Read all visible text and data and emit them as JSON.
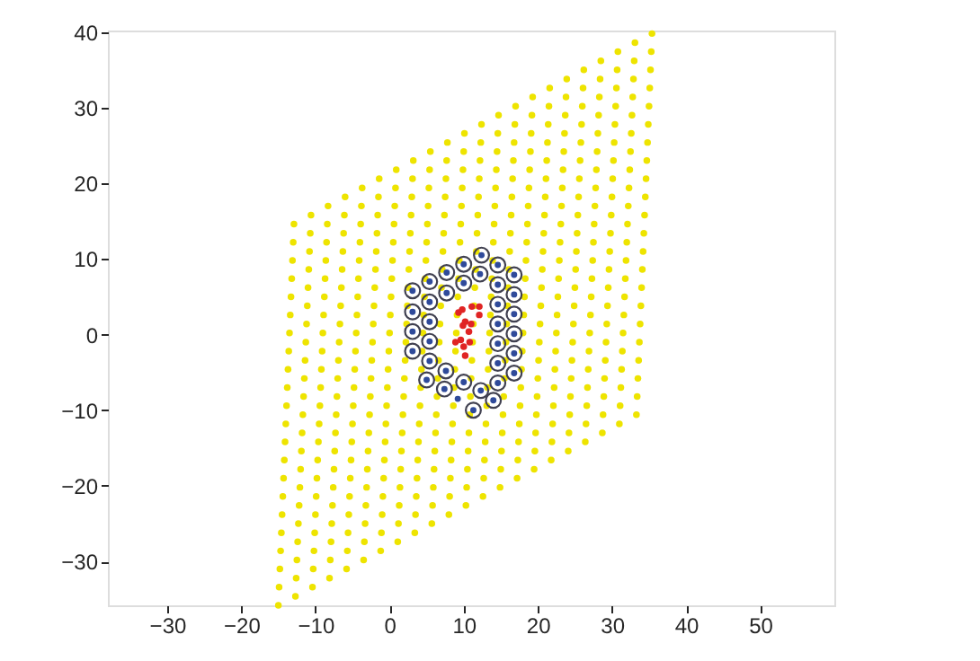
{
  "chart_data": {
    "type": "scatter",
    "xlim": [
      -38,
      60
    ],
    "ylim": [
      -35.8,
      40.2
    ],
    "xticks": [
      -30,
      -20,
      -10,
      0,
      10,
      20,
      30,
      40,
      50
    ],
    "yticks": [
      -30,
      -20,
      -10,
      0,
      10,
      20,
      30,
      40
    ],
    "grid": false,
    "marker": "circle",
    "series": [
      {
        "color": "#eee400",
        "x": [
          -15,
          -12.7,
          -10.4,
          -8.1,
          -5.8,
          -3.5,
          -1.2,
          1.1,
          3.4,
          5.7,
          8,
          10.3,
          12.6,
          14.9,
          17.2,
          19.5,
          21.8,
          24.1,
          26.4,
          28.7,
          31,
          33.3,
          -14.9,
          -12.6,
          -10.3,
          -8,
          -5.7,
          -3.4,
          -1.1,
          1.2,
          3.5,
          5.8,
          8.1,
          10.4,
          12.7,
          15,
          17.3,
          19.6,
          21.9,
          24.2,
          26.5,
          28.8,
          31.1,
          33.4,
          -14.8,
          -12.5,
          -10.2,
          -7.9,
          -5.6,
          -3.3,
          -1,
          1.3,
          3.6,
          5.9,
          8.2,
          10.5,
          12.8,
          15.1,
          17.4,
          19.7,
          22,
          24.3,
          26.6,
          28.9,
          31.2,
          33.5,
          -14.7,
          -12.4,
          -10.1,
          -7.8,
          -5.5,
          -3.2,
          -0.9,
          1.4,
          3.7,
          6,
          8.3,
          10.6,
          12.9,
          15.2,
          17.5,
          19.8,
          22.1,
          24.4,
          26.7,
          29,
          31.3,
          33.6,
          -14.6,
          -12.3,
          -10,
          -7.7,
          -5.4,
          -3.1,
          -0.8,
          1.5,
          3.8,
          6.1,
          8.4,
          10.7,
          13,
          15.3,
          17.6,
          19.9,
          22.2,
          24.5,
          26.8,
          29.1,
          31.4,
          33.7,
          -14.5,
          -12.2,
          -9.9,
          -7.6,
          -5.3,
          -3,
          -0.7,
          1.6,
          3.9,
          6.2,
          8.5,
          10.8,
          13.1,
          15.4,
          17.7,
          20,
          22.3,
          24.6,
          26.9,
          29.2,
          31.5,
          33.8,
          -14.4,
          -12.1,
          -9.8,
          -7.5,
          -5.2,
          -2.9,
          -0.6,
          1.7,
          4,
          6.3,
          8.6,
          10.9,
          13.2,
          15.5,
          17.8,
          20.1,
          22.4,
          24.7,
          27,
          29.3,
          31.6,
          33.9,
          -14.3,
          -12,
          -9.7,
          -7.4,
          -5.1,
          -2.8,
          -0.5,
          1.8,
          4.1,
          6.4,
          8.7,
          11,
          13.3,
          15.6,
          17.9,
          20.2,
          22.5,
          24.8,
          27.1,
          29.4,
          31.7,
          34,
          -14.2,
          -11.9,
          -9.6,
          -7.3,
          -5,
          -2.7,
          -0.4,
          1.9,
          4.2,
          6.5,
          8.8,
          11.1,
          13.4,
          15.7,
          18,
          20.3,
          22.6,
          24.9,
          27.2,
          29.5,
          31.8,
          34.1,
          -14.1,
          -11.8,
          -9.5,
          -7.2,
          -4.9,
          -2.6,
          -0.3,
          2,
          4.3,
          6.6,
          8.9,
          11.2,
          13.5,
          15.8,
          18.1,
          20.4,
          22.7,
          25,
          27.3,
          29.6,
          31.9,
          34.2,
          -14,
          -11.7,
          -9.4,
          -7.1,
          -4.8,
          -2.5,
          -0.2,
          2.1,
          4.4,
          6.7,
          9,
          11.3,
          13.6,
          15.9,
          18.2,
          20.5,
          22.8,
          25.1,
          27.4,
          29.7,
          32,
          34.3,
          -13.9,
          -11.6,
          -9.3,
          -7,
          -4.7,
          -2.4,
          -0.1,
          2.2,
          4.5,
          6.8,
          9.1,
          11.4,
          13.7,
          16,
          18.3,
          20.6,
          22.9,
          25.2,
          27.5,
          29.8,
          32.1,
          34.4,
          -13.8,
          -11.5,
          -9.2,
          -6.9,
          -4.6,
          -2.3,
          0,
          2.3,
          4.6,
          6.9,
          9.2,
          11.5,
          13.8,
          16.1,
          18.4,
          20.7,
          23,
          25.3,
          27.6,
          29.9,
          32.2,
          34.5,
          -13.7,
          -11.4,
          -9.1,
          -6.8,
          -4.5,
          -2.2,
          0.1,
          2.4,
          4.7,
          7,
          9.3,
          11.6,
          13.9,
          16.2,
          18.5,
          20.8,
          23.1,
          25.4,
          27.7,
          30,
          32.3,
          34.6,
          -13.6,
          -11.3,
          -9,
          -6.7,
          -4.4,
          -2.1,
          0.2,
          2.5,
          4.8,
          7.1,
          9.4,
          11.7,
          14,
          16.3,
          18.6,
          20.9,
          23.2,
          25.5,
          27.8,
          30.1,
          32.4,
          34.7,
          -13.5,
          -11.2,
          -8.9,
          -6.6,
          -4.3,
          -2,
          0.3,
          2.6,
          4.9,
          7.2,
          9.5,
          11.8,
          14.1,
          16.4,
          18.7,
          21,
          23.3,
          25.6,
          27.9,
          30.2,
          32.5,
          34.8,
          -13.4,
          -11.1,
          -8.8,
          -6.5,
          -4.2,
          -1.9,
          0.4,
          2.7,
          5,
          7.3,
          9.6,
          11.9,
          14.2,
          16.5,
          18.8,
          21.1,
          23.4,
          25.7,
          28,
          30.3,
          32.6,
          34.9,
          -13.3,
          -11,
          -8.7,
          -6.4,
          -4.1,
          -1.8,
          0.5,
          2.8,
          5.1,
          7.4,
          9.7,
          12,
          14.3,
          16.6,
          18.9,
          21.2,
          23.5,
          25.8,
          28.1,
          30.4,
          32.7,
          35,
          -13.2,
          -10.9,
          -8.6,
          -6.3,
          -4,
          -1.7,
          0.6,
          2.9,
          5.2,
          7.5,
          9.8,
          12.1,
          14.4,
          16.7,
          19,
          21.3,
          23.6,
          25.9,
          28.2,
          30.5,
          32.8,
          35.1,
          -13.1,
          -10.8,
          -8.5,
          -6.2,
          -3.9,
          -1.6,
          0.7,
          3,
          5.3,
          7.6,
          9.9,
          12.2,
          14.5,
          16.8,
          19.1,
          21.4,
          23.7,
          26,
          28.3,
          30.6,
          32.9,
          35.2,
          -13,
          -10.7,
          -8.4,
          -6.1,
          -3.8,
          -1.5,
          0.8,
          3.1,
          5.4,
          7.7,
          10,
          12.3,
          14.6,
          16.9,
          19.2,
          21.5,
          23.8,
          26.1,
          28.4,
          30.7,
          33,
          35.3,
          -12.9,
          -10.6,
          -8.3,
          -6,
          -3.7,
          -1.4,
          0.9,
          3.2,
          5.5,
          7.8,
          10.1,
          12.4,
          14.7,
          17,
          19.3,
          21.6,
          23.9,
          26.2,
          28.5,
          30.8,
          33.1,
          35.4
        ],
        "values": [
          -35.8,
          -34.6,
          -33.4,
          -32.2,
          -31,
          -29.8,
          -28.6,
          -27.4,
          -26.2,
          -25,
          -23.8,
          -22.6,
          -21.4,
          -20.2,
          -19,
          -17.8,
          -16.6,
          -15.4,
          -14.2,
          -13,
          -11.8,
          -10.6,
          -33.4,
          -32.2,
          -31,
          -29.8,
          -28.6,
          -27.4,
          -26.2,
          -25,
          -23.8,
          -22.6,
          -21.4,
          -20.2,
          -19,
          -17.8,
          -16.6,
          -15.4,
          -14.2,
          -13,
          -11.8,
          -10.6,
          -9.4,
          -8.2,
          -31,
          -29.8,
          -28.6,
          -27.4,
          -26.2,
          -25,
          -23.8,
          -22.6,
          -21.4,
          -20.2,
          -19,
          -17.8,
          -16.6,
          -15.4,
          -14.2,
          -13,
          -11.8,
          -10.6,
          -9.4,
          -8.2,
          -7,
          -5.8,
          -28.6,
          -27.4,
          -26.2,
          -25,
          -23.8,
          -22.6,
          -21.4,
          -20.2,
          -19,
          -17.8,
          -16.6,
          -15.4,
          -14.2,
          -13,
          -11.8,
          -10.6,
          -9.4,
          -8.2,
          -7,
          -5.8,
          -4.6,
          -3.4,
          -26.2,
          -25,
          -23.8,
          -22.6,
          -21.4,
          -20.2,
          -19,
          -17.8,
          -16.6,
          -15.4,
          -14.2,
          -13,
          -11.8,
          -10.6,
          -9.4,
          -8.2,
          -7,
          -5.8,
          -4.6,
          -3.4,
          -2.2,
          -1,
          -23.8,
          -22.6,
          -21.4,
          -20.2,
          -19,
          -17.8,
          -16.6,
          -15.4,
          -14.2,
          -13,
          -11.8,
          -10.6,
          -9.4,
          -8.2,
          -7,
          -5.8,
          -4.6,
          -3.4,
          -2.2,
          -1,
          0.2,
          1.4,
          -21.4,
          -20.2,
          -19,
          -17.8,
          -16.6,
          -15.4,
          -14.2,
          -13,
          -11.8,
          -10.6,
          -9.4,
          -8.2,
          -7,
          -5.8,
          -4.6,
          -3.4,
          -2.2,
          -1,
          0.2,
          1.4,
          2.6,
          3.8,
          -19,
          -17.8,
          -16.6,
          -15.4,
          -14.2,
          -13,
          -11.8,
          -10.6,
          -9.4,
          -8.2,
          -7,
          -5.8,
          -4.6,
          -3.4,
          -2.2,
          -1,
          0.2,
          1.4,
          2.6,
          3.8,
          5,
          6.2,
          -16.6,
          -15.4,
          -14.2,
          -13,
          -11.8,
          -10.6,
          -9.4,
          -8.2,
          -7,
          -5.8,
          -4.6,
          -3.4,
          -2.2,
          -1,
          0.2,
          1.4,
          2.6,
          3.8,
          5,
          6.2,
          7.4,
          8.6,
          -14.2,
          -13,
          -11.8,
          -10.6,
          -9.4,
          -8.2,
          -7,
          -5.8,
          -4.6,
          -3.4,
          -2.2,
          -1,
          0.2,
          1.4,
          2.6,
          3.8,
          5,
          6.2,
          7.4,
          8.6,
          9.8,
          11,
          -11.8,
          -10.6,
          -9.4,
          -8.2,
          -7,
          -5.8,
          -4.6,
          -3.4,
          -2.2,
          -1,
          0.2,
          1.4,
          2.6,
          3.8,
          5,
          6.2,
          7.4,
          8.6,
          9.8,
          11,
          12.2,
          13.4,
          -9.4,
          -8.2,
          -7,
          -5.8,
          -4.6,
          -3.4,
          -2.2,
          -1,
          0.2,
          1.4,
          2.6,
          3.8,
          5,
          6.2,
          7.4,
          8.6,
          9.8,
          11,
          12.2,
          13.4,
          14.6,
          15.8,
          -7,
          -5.8,
          -4.6,
          -3.4,
          -2.2,
          -1,
          0.2,
          1.4,
          2.6,
          3.8,
          5,
          6.2,
          7.4,
          8.6,
          9.8,
          11,
          12.2,
          13.4,
          14.6,
          15.8,
          17,
          18.2,
          -4.6,
          -3.4,
          -2.2,
          -1,
          0.2,
          1.4,
          2.6,
          3.8,
          5,
          6.2,
          7.4,
          8.6,
          9.8,
          11,
          12.2,
          13.4,
          14.6,
          15.8,
          17,
          18.2,
          19.4,
          20.6,
          -2.2,
          -1,
          0.2,
          1.4,
          2.6,
          3.8,
          5,
          6.2,
          7.4,
          8.6,
          9.8,
          11,
          12.2,
          13.4,
          14.6,
          15.8,
          17,
          18.2,
          19.4,
          20.6,
          21.8,
          23,
          0.2,
          1.4,
          2.6,
          3.8,
          5,
          6.2,
          7.4,
          8.6,
          9.8,
          11,
          12.2,
          13.4,
          14.6,
          15.8,
          17,
          18.2,
          19.4,
          20.6,
          21.8,
          23,
          24.2,
          25.4,
          2.6,
          3.8,
          5,
          6.2,
          7.4,
          8.6,
          9.8,
          11,
          12.2,
          13.4,
          14.6,
          15.8,
          17,
          18.2,
          19.4,
          20.6,
          21.8,
          23,
          24.2,
          25.4,
          26.6,
          27.8,
          5,
          6.2,
          7.4,
          8.6,
          9.8,
          11,
          12.2,
          13.4,
          14.6,
          15.8,
          17,
          18.2,
          19.4,
          20.6,
          21.8,
          23,
          24.2,
          25.4,
          26.6,
          27.8,
          29,
          30.2,
          7.4,
          8.6,
          9.8,
          11,
          12.2,
          13.4,
          14.6,
          15.8,
          17,
          18.2,
          19.4,
          20.6,
          21.8,
          23,
          24.2,
          25.4,
          26.6,
          27.8,
          29,
          30.2,
          31.4,
          32.6,
          9.8,
          11,
          12.2,
          13.4,
          14.6,
          15.8,
          17,
          18.2,
          19.4,
          20.6,
          21.8,
          23,
          24.2,
          25.4,
          26.6,
          27.8,
          29,
          30.2,
          31.4,
          32.6,
          33.8,
          35,
          12.2,
          13.4,
          14.6,
          15.8,
          17,
          18.2,
          19.4,
          20.6,
          21.8,
          23,
          24.2,
          25.4,
          26.6,
          27.8,
          29,
          30.2,
          31.4,
          32.6,
          33.8,
          35,
          36.2,
          37.4,
          14.6,
          15.8,
          17,
          18.2,
          19.4,
          20.6,
          21.8,
          23,
          24.2,
          25.4,
          26.6,
          27.8,
          29,
          30.2,
          31.4,
          32.6,
          33.8,
          35,
          36.2,
          37.4,
          38.6,
          39.8
        ]
      },
      {
        "color": "#404050",
        "x": [
          12.4,
          10.0,
          14.6,
          7.7,
          12.2,
          16.8,
          5.4,
          10.0,
          14.6,
          3.1,
          7.7,
          16.8,
          5.4,
          14.6,
          3.1,
          16.8,
          5.4,
          14.6,
          3.1,
          16.8,
          5.4,
          14.6,
          3.1,
          16.8,
          5.4,
          14.6,
          16.8,
          5.0,
          7.6,
          7.4,
          10.0,
          12.3,
          14.6,
          11.3,
          14.0
        ],
        "values": [
          10.5,
          9.3,
          9.2,
          8.2,
          8.0,
          7.9,
          7.0,
          6.8,
          6.6,
          5.8,
          5.5,
          5.3,
          4.3,
          4.0,
          3.0,
          2.7,
          1.7,
          1.4,
          0.4,
          0.1,
          -0.9,
          -1.2,
          -2.2,
          -2.5,
          -3.5,
          -3.8,
          -5.1,
          -6.0,
          -4.8,
          -7.2,
          -6.3,
          -7.4,
          -6.4,
          -10.0,
          -8.7
        ]
      },
      {
        "color": "#2f4a9a",
        "x": [
          12.4,
          10.0,
          14.6,
          7.7,
          12.2,
          16.8,
          5.4,
          10.0,
          14.6,
          3.1,
          7.7,
          16.8,
          5.4,
          14.6,
          3.1,
          16.8,
          5.4,
          14.6,
          3.1,
          16.8,
          5.4,
          14.6,
          3.1,
          16.8,
          5.4,
          14.6,
          16.8,
          5.0,
          7.6,
          7.4,
          10.0,
          12.3,
          14.6,
          11.3,
          14.0,
          9.2
        ],
        "values": [
          10.5,
          9.3,
          9.2,
          8.2,
          8.0,
          7.9,
          7.0,
          6.8,
          6.6,
          5.8,
          5.5,
          5.3,
          4.3,
          4.0,
          3.0,
          2.7,
          1.7,
          1.4,
          0.4,
          0.1,
          -0.9,
          -1.2,
          -2.2,
          -2.5,
          -3.5,
          -3.8,
          -5.1,
          -6.0,
          -4.8,
          -7.2,
          -6.3,
          -7.4,
          -6.4,
          -10.0,
          -8.7,
          -8.5
        ]
      },
      {
        "color": "#e02424",
        "x": [
          9.3,
          9.8,
          11.1,
          12.1,
          12.1,
          10.2,
          11.0,
          9.9,
          10.7,
          9.6,
          8.9,
          10.8,
          10.0,
          10.2
        ],
        "values": [
          2.9,
          3.3,
          3.7,
          3.7,
          2.6,
          1.7,
          1.4,
          1.2,
          0.4,
          -0.7,
          -1.0,
          -1.0,
          -1.6,
          -2.8
        ]
      }
    ]
  }
}
